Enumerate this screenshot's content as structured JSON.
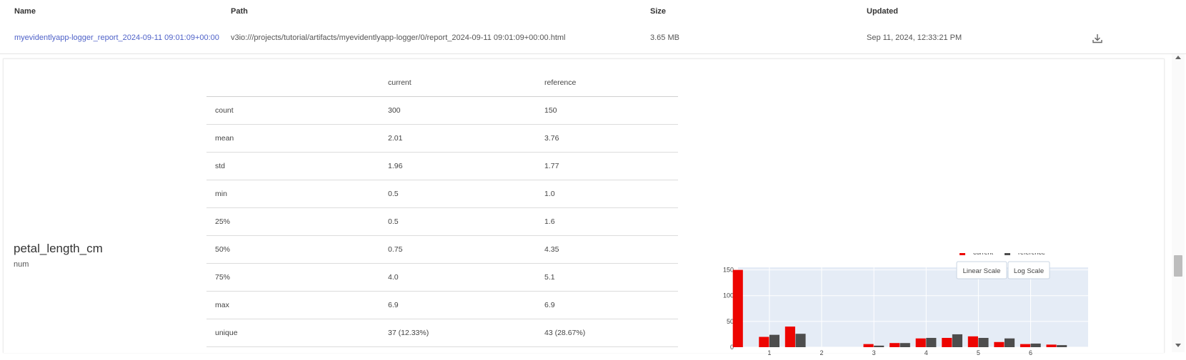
{
  "table_header": {
    "name": "Name",
    "path": "Path",
    "size": "Size",
    "updated": "Updated"
  },
  "artifact": {
    "name": "myevidentlyapp-logger_report_2024-09-11 09:01:09+00:00",
    "path": "v3io:///projects/tutorial/artifacts/myevidentlyapp-logger/0/report_2024-09-11 09:01:09+00:00.html",
    "size": "3.65 MB",
    "updated": "Sep 11, 2024, 12:33:21 PM",
    "download_icon": "download-icon"
  },
  "feature": {
    "name": "petal_length_cm",
    "type": "num"
  },
  "stats": {
    "columns": [
      "",
      "current",
      "reference"
    ],
    "rows": [
      [
        "count",
        "300",
        "150"
      ],
      [
        "mean",
        "2.01",
        "3.76"
      ],
      [
        "std",
        "1.96",
        "1.77"
      ],
      [
        "min",
        "0.5",
        "1.0"
      ],
      [
        "25%",
        "0.5",
        "1.6"
      ],
      [
        "50%",
        "0.75",
        "4.35"
      ],
      [
        "75%",
        "4.0",
        "5.1"
      ],
      [
        "max",
        "6.9",
        "6.9"
      ],
      [
        "unique",
        "37 (12.33%)",
        "43 (28.67%)"
      ]
    ]
  },
  "chart_buttons": {
    "linear": "Linear Scale",
    "log": "Log Scale"
  },
  "colors": {
    "current": "#ed0400",
    "reference": "#4d4d4d",
    "plot_bg": "#e5ecf6",
    "link": "#4f62c8"
  },
  "chart_data": {
    "type": "bar",
    "xlim": [
      0.4,
      7.1
    ],
    "ylim": [
      0,
      155
    ],
    "xticks": [
      1,
      2,
      3,
      4,
      5,
      6
    ],
    "yticks": [
      0,
      50,
      100,
      150
    ],
    "legend_position": "top-right",
    "grid": true,
    "x": [
      0.5,
      1.0,
      1.5,
      2.0,
      2.5,
      3.0,
      3.5,
      4.0,
      4.5,
      5.0,
      5.5,
      6.0,
      6.5
    ],
    "series": [
      {
        "name": "current",
        "values": [
          150,
          20,
          40,
          0,
          0,
          6,
          8,
          17,
          18,
          21,
          10,
          6,
          5
        ]
      },
      {
        "name": "reference",
        "values": [
          0,
          24,
          26,
          0,
          0,
          3,
          8,
          18,
          25,
          18,
          17,
          7,
          4
        ]
      }
    ]
  }
}
